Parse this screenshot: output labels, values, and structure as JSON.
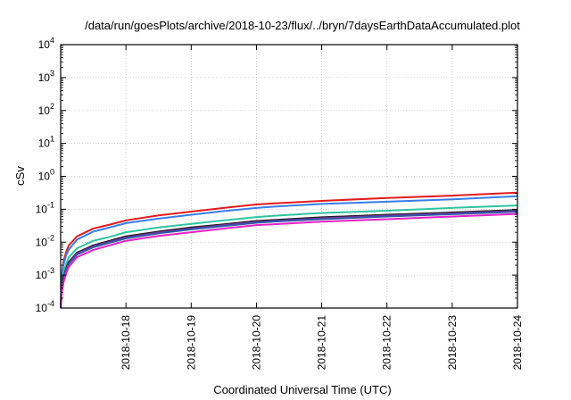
{
  "chart_data": {
    "type": "line",
    "title": "/data/run/goesPlots/archive/2018-10-23/flux/../bryn/7daysEarthDataAccumulated.plot",
    "xlabel": "Coordinated Universal Time (UTC)",
    "ylabel": "cSv",
    "y_scale": "log",
    "ylim": [
      0.0001,
      10000
    ],
    "y_ticks": [
      {
        "base": "10",
        "exp": "-4"
      },
      {
        "base": "10",
        "exp": "-3"
      },
      {
        "base": "10",
        "exp": "-2"
      },
      {
        "base": "10",
        "exp": "-1"
      },
      {
        "base": "10",
        "exp": "0"
      },
      {
        "base": "10",
        "exp": "1"
      },
      {
        "base": "10",
        "exp": "2"
      },
      {
        "base": "10",
        "exp": "3"
      },
      {
        "base": "10",
        "exp": "4"
      }
    ],
    "xlim": [
      "2018-10-17",
      "2018-10-24"
    ],
    "x_ticks": [
      "2018-10-18",
      "2018-10-19",
      "2018-10-20",
      "2018-10-21",
      "2018-10-22",
      "2018-10-23",
      "2018-10-24"
    ],
    "grid": true,
    "x": [
      "2018-10-17 00:00",
      "2018-10-17 00:30",
      "2018-10-17 01:00",
      "2018-10-17 02:00",
      "2018-10-17 03:00",
      "2018-10-17 06:00",
      "2018-10-17 12:00",
      "2018-10-17 18:00",
      "2018-10-18 00:00",
      "2018-10-18 12:00",
      "2018-10-19 00:00",
      "2018-10-19 12:00",
      "2018-10-20 00:00",
      "2018-10-20 06:00",
      "2018-10-21 00:00",
      "2018-10-22 00:00",
      "2018-10-23 00:00",
      "2018-10-24 00:00"
    ],
    "series": [
      {
        "color": "#e41a1c",
        "values": [
          0.0001,
          0.0012,
          0.0025,
          0.005,
          0.008,
          0.015,
          0.026,
          0.034,
          0.046,
          0.065,
          0.085,
          0.11,
          0.14,
          0.15,
          0.18,
          0.22,
          0.26,
          0.32
        ]
      },
      {
        "color": "#377eeb",
        "values": [
          0.0001,
          0.001,
          0.002,
          0.004,
          0.006,
          0.012,
          0.021,
          0.028,
          0.038,
          0.052,
          0.068,
          0.088,
          0.11,
          0.12,
          0.145,
          0.17,
          0.2,
          0.25
        ]
      },
      {
        "color": "#2ec4a0",
        "values": [
          0.0001,
          0.0006,
          0.0011,
          0.0022,
          0.0035,
          0.0065,
          0.011,
          0.0145,
          0.02,
          0.028,
          0.036,
          0.046,
          0.058,
          0.063,
          0.077,
          0.09,
          0.11,
          0.13
        ]
      },
      {
        "color": "#1a1a1a",
        "values": [
          0.0001,
          0.00045,
          0.0008,
          0.0016,
          0.0025,
          0.0048,
          0.008,
          0.011,
          0.015,
          0.021,
          0.028,
          0.035,
          0.044,
          0.047,
          0.057,
          0.068,
          0.08,
          0.095
        ]
      },
      {
        "color": "#7b2fa0",
        "values": [
          0.0001,
          0.00042,
          0.00075,
          0.0015,
          0.0023,
          0.0045,
          0.0075,
          0.0102,
          0.014,
          0.0195,
          0.026,
          0.033,
          0.041,
          0.044,
          0.053,
          0.064,
          0.075,
          0.089
        ]
      },
      {
        "color": "#2f5aa8",
        "values": [
          0.0001,
          0.0004,
          0.0007,
          0.0014,
          0.0022,
          0.0042,
          0.007,
          0.0096,
          0.013,
          0.0185,
          0.0245,
          0.031,
          0.039,
          0.042,
          0.05,
          0.06,
          0.071,
          0.084
        ]
      },
      {
        "color": "#e620c8",
        "values": [
          0.0001,
          0.00032,
          0.00058,
          0.0011,
          0.0018,
          0.0035,
          0.0058,
          0.008,
          0.011,
          0.0155,
          0.02,
          0.026,
          0.033,
          0.035,
          0.042,
          0.05,
          0.06,
          0.072
        ]
      }
    ]
  }
}
